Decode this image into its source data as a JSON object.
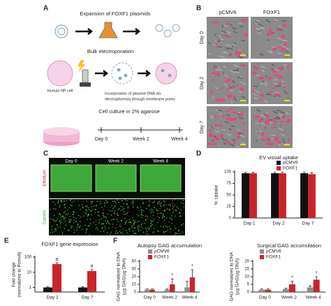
{
  "panel_labels": [
    "A",
    "B",
    "C",
    "D",
    "E",
    "F"
  ],
  "panel_a": {
    "title": "Expansion of FOXF1 plasmids",
    "step2": "Bulk electroporation",
    "cell_label": "Human NP cell",
    "note": [
      "Incorporation of plasmid DNA via",
      "electrophoresis through membrane pores"
    ],
    "step3": "Cell culture in 2% agarose",
    "timeline": [
      "Day 0",
      "Week 2",
      "Week 4"
    ]
  },
  "panel_b": {
    "columns": [
      "pCMV6",
      "FOXF1"
    ],
    "rows": [
      "Day 0",
      "Day 2",
      "Day 7"
    ]
  },
  "panel_c": {
    "columns": [
      "Day 0",
      "Week 2",
      "Week 4"
    ],
    "stains": [
      "Calcein",
      "Ethidium"
    ]
  },
  "chart_data": [
    {
      "type": "bar",
      "title": "EV visual uptake",
      "ylabel": [
        "% Uptake"
      ],
      "categories": [
        "Day 1",
        "Day 2",
        "Day 7"
      ],
      "ylim": [
        0,
        100
      ],
      "yticks": [
        0,
        25,
        50,
        75,
        100
      ],
      "series": [
        {
          "name": "pCMV6",
          "color": "#111111",
          "values": [
            97,
            97,
            97
          ],
          "errors": [
            2,
            2,
            2
          ]
        },
        {
          "name": "FOXF1",
          "color": "#c9242c",
          "values": [
            97,
            97,
            95
          ],
          "errors": [
            2,
            2,
            3
          ]
        }
      ]
    },
    {
      "type": "bar",
      "title": "FOXF1 gene expression",
      "ylabel": [
        "Fold change",
        "(normalized to Pcmv6)"
      ],
      "categories": [
        "Day 2",
        "Day 7"
      ],
      "log": true,
      "ylim": [
        0.5,
        100
      ],
      "yticks": [
        1,
        10,
        100
      ],
      "series": [
        {
          "color": "#111111",
          "values": [
            1,
            1
          ],
          "errors": [
            0.1,
            0.1
          ]
        },
        {
          "color": "#c9242c",
          "values": [
            35,
            12
          ],
          "errors": [
            8,
            3
          ],
          "annotations": [
            "a",
            "a"
          ]
        }
      ]
    },
    {
      "type": "bar",
      "title": "Autopsy GAG accumulation",
      "ylabel": [
        "GAG normalized to DNA",
        "(µg GAG/µg DNA)"
      ],
      "categories": [
        "Day 0",
        "Week 2",
        "Week 4"
      ],
      "ylim": [
        0,
        40
      ],
      "yticks": [
        0,
        10,
        20,
        30,
        40
      ],
      "series": [
        {
          "name": "pCMV6",
          "color": "#8c8c8c",
          "values": [
            3,
            3,
            6
          ],
          "errors": [
            1,
            1,
            8
          ]
        },
        {
          "name": "FOXF1",
          "color": "#c9242c",
          "values": [
            3,
            10,
            19
          ],
          "errors": [
            1,
            7,
            10
          ],
          "annotations": [
            null,
            "*",
            "*"
          ]
        }
      ]
    },
    {
      "type": "bar",
      "title": "Surgical GAG accumulation",
      "ylabel": [
        "GAG normalized to DNA",
        "(µg GAG/µg DNA)"
      ],
      "categories": [
        "Day 0",
        "Week 2",
        "Week 4"
      ],
      "ylim": [
        0,
        20
      ],
      "yticks": [
        0,
        5,
        10,
        15,
        20
      ],
      "series": [
        {
          "name": "pCMV6",
          "color": "#8c8c8c",
          "values": [
            1.5,
            2,
            3
          ],
          "errors": [
            0.5,
            0.5,
            1
          ]
        },
        {
          "name": "FOXF1",
          "color": "#c9242c",
          "values": [
            1.5,
            5,
            8
          ],
          "errors": [
            0.5,
            2,
            2
          ],
          "annotations": [
            null,
            "*",
            "*"
          ]
        }
      ]
    }
  ]
}
